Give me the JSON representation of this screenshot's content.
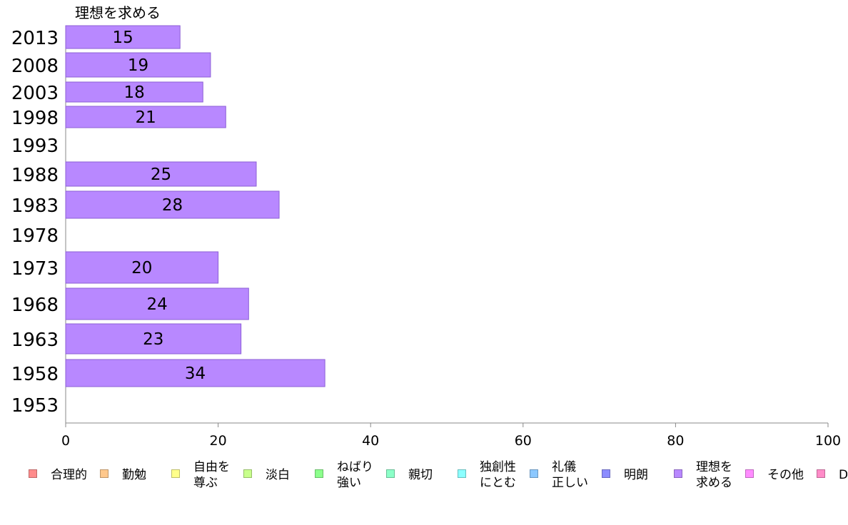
{
  "chart_data": {
    "type": "bar",
    "orientation": "horizontal",
    "series_label": "理想を求める",
    "bar_color": "#b888ff",
    "bar_stroke": "#8c5fd6",
    "categories": [
      "2013",
      "2008",
      "2003",
      "1998",
      "1993",
      "1988",
      "1983",
      "1978",
      "1973",
      "1968",
      "1963",
      "1958",
      "1953"
    ],
    "values": [
      15,
      19,
      18,
      21,
      null,
      25,
      28,
      null,
      20,
      24,
      23,
      34,
      null
    ],
    "xlim": [
      0,
      100
    ],
    "xticks": [
      "0",
      "20",
      "40",
      "60",
      "80",
      "100"
    ],
    "grid": false,
    "legend_position": "bottom"
  },
  "legend": [
    {
      "lines": [
        "合理的"
      ],
      "color": "#ff8c8c"
    },
    {
      "lines": [
        "勤勉"
      ],
      "color": "#ffc88c"
    },
    {
      "lines": [
        "自由を",
        "尊ぶ"
      ],
      "color": "#ffff8c"
    },
    {
      "lines": [
        "淡白"
      ],
      "color": "#c8ff8c"
    },
    {
      "lines": [
        "ねばり",
        "強い"
      ],
      "color": "#8cff8c"
    },
    {
      "lines": [
        "親切"
      ],
      "color": "#8cffc8"
    },
    {
      "lines": [
        "独創性",
        "にとむ"
      ],
      "color": "#8cffff"
    },
    {
      "lines": [
        "礼儀",
        "正しい"
      ],
      "color": "#8cc8ff"
    },
    {
      "lines": [
        "明朗"
      ],
      "color": "#8c8cff"
    },
    {
      "lines": [
        "理想を",
        "求める"
      ],
      "color": "#b888ff"
    },
    {
      "lines": [
        "その他"
      ],
      "color": "#ff8cff"
    },
    {
      "lines": [
        "D"
      ],
      "color": "#ff8cc8"
    }
  ]
}
